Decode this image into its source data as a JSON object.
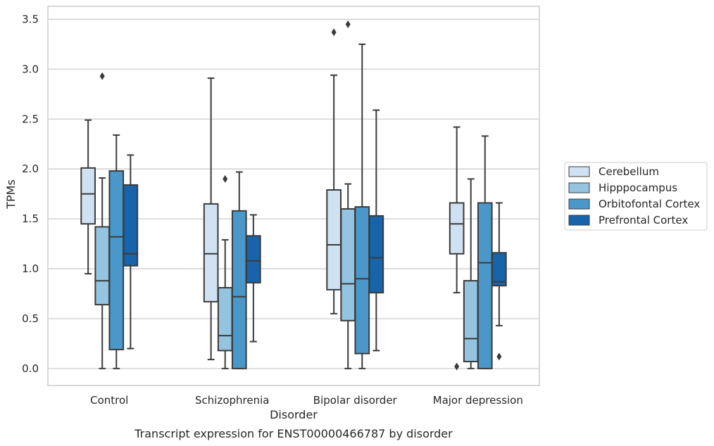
{
  "chart_data": {
    "type": "box",
    "caption": "Transcript expression for ENST00000466787 by disorder",
    "xlabel": "Disorder",
    "ylabel": "TPMs",
    "ylim": [
      -0.17,
      3.63
    ],
    "yticks": [
      0.0,
      0.5,
      1.0,
      1.5,
      2.0,
      2.5,
      3.0,
      3.5
    ],
    "ytick_labels": [
      "0.0",
      "0.5",
      "1.0",
      "1.5",
      "2.0",
      "2.5",
      "3.0",
      "3.5"
    ],
    "grid": "horizontal",
    "legend_position": "right",
    "categories": [
      "Control",
      "Schizophrenia",
      "Bipolar disorder",
      "Major depression"
    ],
    "series": [
      {
        "name": "Cerebellum",
        "color": "#d0e1f2",
        "boxes": [
          {
            "min": 0.95,
            "q1": 1.45,
            "median": 1.75,
            "q3": 2.01,
            "max": 2.49,
            "outliers": []
          },
          {
            "min": 0.09,
            "q1": 0.67,
            "median": 1.15,
            "q3": 1.65,
            "max": 2.91,
            "outliers": []
          },
          {
            "min": 0.55,
            "q1": 0.79,
            "median": 1.24,
            "q3": 1.79,
            "max": 2.94,
            "outliers": [
              3.37
            ]
          },
          {
            "min": 0.76,
            "q1": 1.15,
            "median": 1.45,
            "q3": 1.66,
            "max": 2.42,
            "outliers": [
              0.02
            ]
          }
        ]
      },
      {
        "name": "Hipppocampus",
        "color": "#94c4df",
        "boxes": [
          {
            "min": 0.0,
            "q1": 0.64,
            "median": 0.88,
            "q3": 1.42,
            "max": 1.91,
            "outliers": [
              2.93
            ]
          },
          {
            "min": 0.0,
            "q1": 0.18,
            "median": 0.33,
            "q3": 0.81,
            "max": 1.29,
            "outliers": [
              1.9
            ]
          },
          {
            "min": 0.0,
            "q1": 0.48,
            "median": 0.85,
            "q3": 1.6,
            "max": 1.85,
            "outliers": [
              3.45
            ]
          },
          {
            "min": 0.0,
            "q1": 0.07,
            "median": 0.3,
            "q3": 0.88,
            "max": 1.9,
            "outliers": []
          }
        ]
      },
      {
        "name": "Orbitofontal Cortex",
        "color": "#4a98c9",
        "boxes": [
          {
            "min": 0.0,
            "q1": 0.19,
            "median": 1.32,
            "q3": 1.98,
            "max": 2.34,
            "outliers": []
          },
          {
            "min": 0.0,
            "q1": 0.0,
            "median": 0.72,
            "q3": 1.58,
            "max": 1.97,
            "outliers": []
          },
          {
            "min": 0.0,
            "q1": 0.15,
            "median": 0.9,
            "q3": 1.62,
            "max": 3.25,
            "outliers": []
          },
          {
            "min": 0.0,
            "q1": 0.0,
            "median": 1.06,
            "q3": 1.66,
            "max": 2.33,
            "outliers": []
          }
        ]
      },
      {
        "name": "Prefrontal Cortex",
        "color": "#1764ab",
        "boxes": [
          {
            "min": 0.2,
            "q1": 1.03,
            "median": 1.15,
            "q3": 1.84,
            "max": 2.14,
            "outliers": []
          },
          {
            "min": 0.27,
            "q1": 0.86,
            "median": 1.08,
            "q3": 1.33,
            "max": 1.54,
            "outliers": []
          },
          {
            "min": 0.18,
            "q1": 0.76,
            "median": 1.11,
            "q3": 1.53,
            "max": 2.59,
            "outliers": []
          },
          {
            "min": 0.43,
            "q1": 0.83,
            "median": 0.87,
            "q3": 1.16,
            "max": 1.66,
            "outliers": [
              0.12
            ]
          }
        ]
      }
    ]
  }
}
